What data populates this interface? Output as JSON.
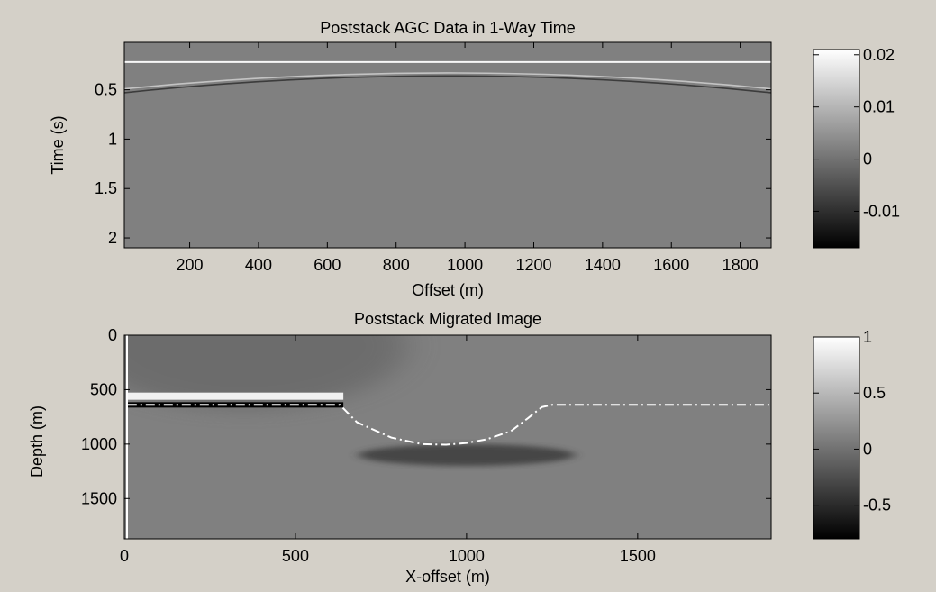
{
  "figure": {
    "background": "#d4d0c8"
  },
  "chart_data": [
    {
      "type": "heatmap",
      "title": "Poststack AGC Data in 1-Way Time",
      "xlabel": "Offset (m)",
      "ylabel": "Time (s)",
      "xlim": [
        10,
        1890
      ],
      "ylim": [
        2.1,
        0.02
      ],
      "y_reversed": true,
      "xticks": [
        "200",
        "400",
        "600",
        "800",
        "1000",
        "1200",
        "1400",
        "1600",
        "1800"
      ],
      "xtick_values": [
        200,
        400,
        600,
        800,
        1000,
        1200,
        1400,
        1600,
        1800
      ],
      "yticks": [
        "0.5",
        "1",
        "1.5",
        "2"
      ],
      "ytick_values": [
        0.5,
        1,
        1.5,
        2
      ],
      "colormap": "gray",
      "background_value": 0,
      "features": [
        {
          "kind": "flat",
          "t": 0.22,
          "amplitude": 0.02
        },
        {
          "kind": "curve",
          "t_edges": 0.49,
          "t_center": 0.33,
          "amplitude": 0.012
        },
        {
          "kind": "curve",
          "t_edges": 0.53,
          "t_center": 0.36,
          "amplitude": -0.008
        }
      ],
      "colorbar": {
        "range": [
          -0.017,
          0.021
        ],
        "ticks": [
          "0.02",
          "0.01",
          "0",
          "-0.01"
        ],
        "tick_values": [
          0.02,
          0.01,
          0,
          -0.01
        ]
      }
    },
    {
      "type": "heatmap",
      "title": "Poststack Migrated Image",
      "xlabel": "X-offset (m)",
      "ylabel": "Depth (m)",
      "xlim": [
        0,
        1890
      ],
      "ylim": [
        1870,
        0
      ],
      "y_reversed": true,
      "xticks": [
        "0",
        "500",
        "1000",
        "1500"
      ],
      "xtick_values": [
        0,
        500,
        1000,
        1500
      ],
      "yticks": [
        "0",
        "500",
        "1000",
        "1500"
      ],
      "ytick_values": [
        0,
        500,
        1000,
        1500
      ],
      "colormap": "gray",
      "background_value": 0,
      "reflector_bright": {
        "x": [
          10,
          640
        ],
        "depth": 560,
        "amplitude": 0.9
      },
      "reflector_dark": {
        "x": [
          10,
          640
        ],
        "depth": 640,
        "amplitude": -0.8
      },
      "model_overlay": {
        "style": "dash-dot",
        "color": "#ffffff",
        "x": [
          10,
          630,
          680,
          780,
          870,
          940,
          1000,
          1060,
          1130,
          1180,
          1220,
          1250,
          1890
        ],
        "depth": [
          640,
          640,
          800,
          940,
          1000,
          1005,
          990,
          955,
          880,
          760,
          660,
          640,
          640
        ]
      },
      "colorbar": {
        "range": [
          -0.8,
          1.0
        ],
        "ticks": [
          "1",
          "0.5",
          "0",
          "-0.5"
        ],
        "tick_values": [
          1,
          0.5,
          0,
          -0.5
        ]
      }
    }
  ]
}
